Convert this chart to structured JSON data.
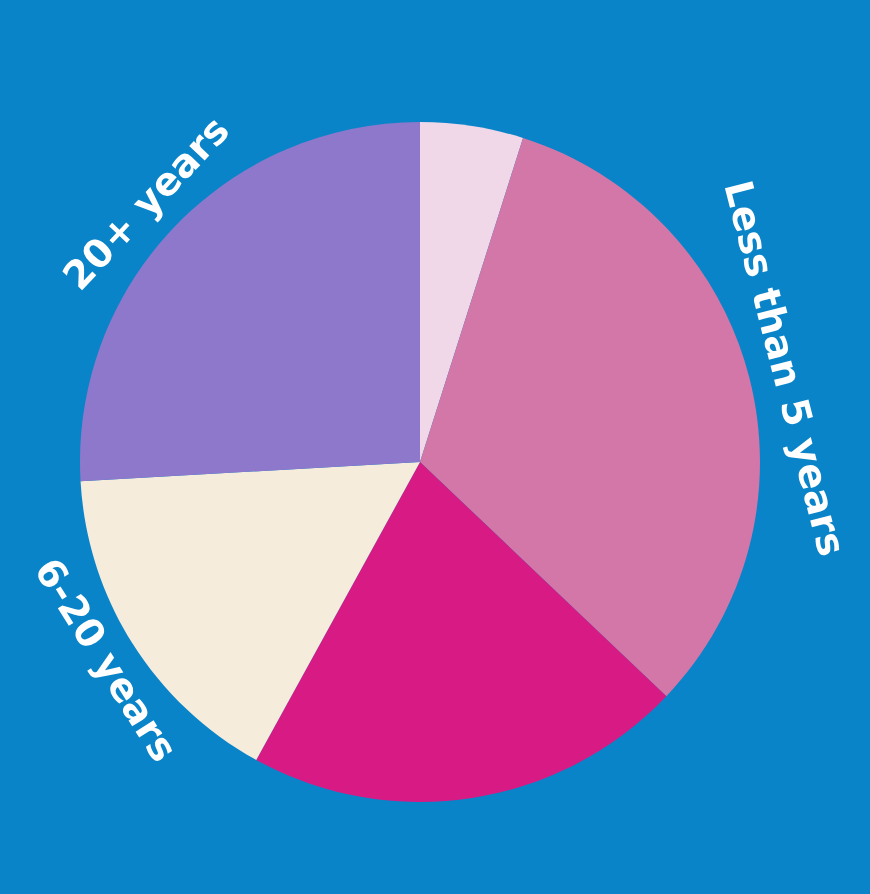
{
  "chart_data": {
    "type": "pie",
    "categories": [
      null,
      "Less than 5 years",
      null,
      "6-20 years",
      "20+ years"
    ],
    "values": [
      4.9,
      32.2,
      20.9,
      16.1,
      25.9
    ],
    "colors": [
      "#f0d8e8",
      "#d277a8",
      "#d81b84",
      "#f5ecdc",
      "#8e78cc"
    ],
    "legend": false
  }
}
